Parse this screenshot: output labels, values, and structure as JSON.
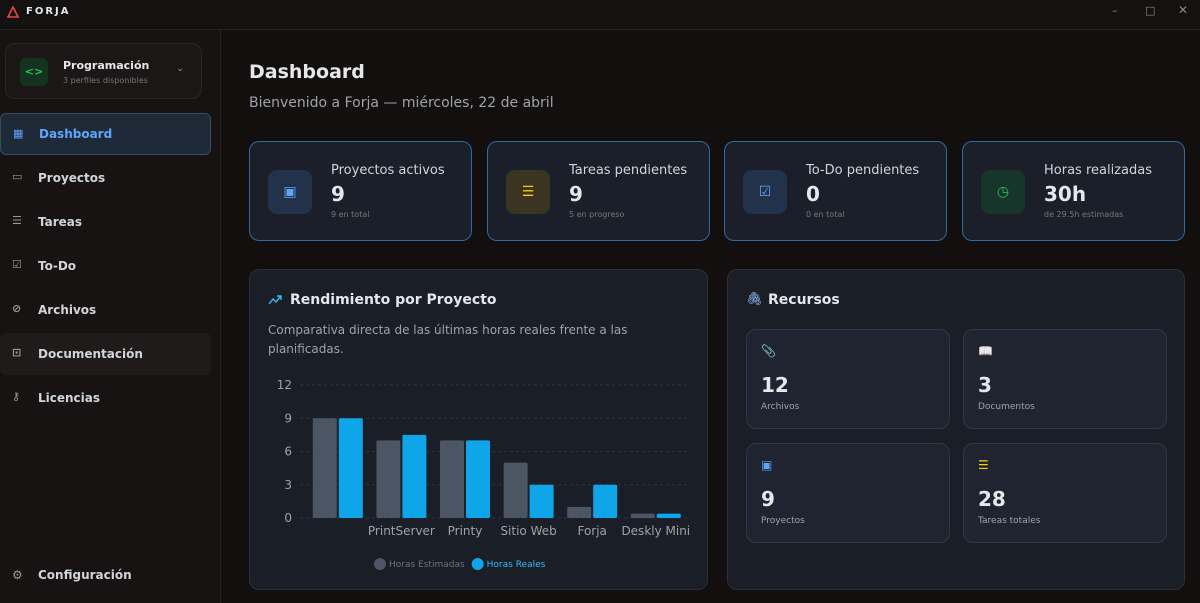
{
  "app": {
    "name": "FORJA"
  },
  "sidebar": {
    "profile": {
      "name": "Programación",
      "subtitle": "3 perfiles disponibles"
    },
    "nav": [
      "Dashboard",
      "Proyectos",
      "Tareas",
      "To-Do",
      "Archivos",
      "Documentación",
      "Licencias"
    ],
    "settings": "Configuración"
  },
  "header": {
    "title": "Dashboard",
    "subtitle": "Bienvenido a Forja — miércoles, 22 de abril"
  },
  "stats": [
    {
      "label": "Proyectos activos",
      "value": "9",
      "note": "9 en total"
    },
    {
      "label": "Tareas pendientes",
      "value": "9",
      "note": "5 en progreso"
    },
    {
      "label": "To-Do pendientes",
      "value": "0",
      "note": "0 en total"
    },
    {
      "label": "Horas realizadas",
      "value": "30h",
      "note": "de 29.5h estimadas"
    }
  ],
  "chart_data": {
    "type": "bar",
    "title": "Rendimiento por Proyecto",
    "subtitle": "Comparativa directa de las últimas horas reales frente a las planificadas.",
    "categories": [
      null,
      "PrintServer",
      "Printy",
      "Sitio Web",
      "Forja",
      "Deskly Mini"
    ],
    "series": [
      {
        "name": "Horas Estimadas",
        "color": "#4b5563",
        "values": [
          9,
          7,
          7,
          5,
          1,
          0.4
        ]
      },
      {
        "name": "Horas Reales",
        "color": "#0ea5e9",
        "values": [
          9,
          7.5,
          7,
          3,
          3,
          0.4
        ]
      }
    ],
    "ylim": [
      0,
      12
    ],
    "yticks": [
      0,
      3,
      6,
      9,
      12
    ],
    "grid": true,
    "legend": "bottom"
  },
  "resources": {
    "title": "Recursos",
    "items": [
      {
        "value": "12",
        "label": "Archivos"
      },
      {
        "value": "3",
        "label": "Documentos"
      },
      {
        "value": "9",
        "label": "Proyectos"
      },
      {
        "value": "28",
        "label": "Tareas totales"
      }
    ]
  }
}
